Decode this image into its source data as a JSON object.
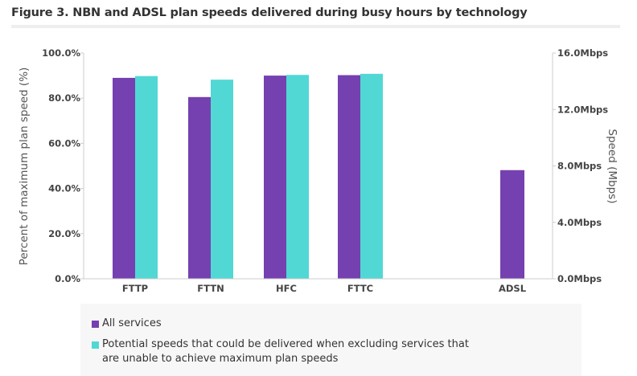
{
  "title": "Figure 3. NBN and ADSL plan speeds delivered during busy hours by technology",
  "colors": {
    "all_services": "#7540b0",
    "potential": "#51d8d5"
  },
  "legend": {
    "all_services": "All services",
    "potential": "Potential speeds that could be delivered when excluding services that are unable to achieve maximum plan speeds",
    "potential_line1": "Potential speeds that could be delivered when excluding services that",
    "potential_line2": "are unable to achieve maximum plan speeds"
  },
  "chart_data": {
    "type": "bar",
    "categories": [
      "FTTP",
      "FTTN",
      "HFC",
      "FTTC",
      "ADSL"
    ],
    "series": [
      {
        "name": "All services",
        "axis": "left",
        "values": [
          89.0,
          80.5,
          90.0,
          90.2,
          null
        ]
      },
      {
        "name": "Potential speeds that could be delivered when excluding services that are unable to achieve maximum plan speeds",
        "axis": "left",
        "values": [
          89.8,
          88.2,
          90.3,
          90.8,
          null
        ]
      },
      {
        "name": "All services",
        "axis": "right",
        "values": [
          null,
          null,
          null,
          null,
          7.7
        ]
      }
    ],
    "ylabel": "Percent of maximum plan speed (%)",
    "y2label": "Speed (Mbps)",
    "ylim": [
      0,
      100
    ],
    "y2lim": [
      0,
      16
    ],
    "yticks": [
      "0.0%",
      "20.0%",
      "40.0%",
      "60.0%",
      "80.0%",
      "100.0%"
    ],
    "y2ticks": [
      "0.0Mbps",
      "4.0Mbps",
      "8.0Mbps",
      "12.0Mbps",
      "16.0Mbps"
    ],
    "grid": false,
    "legend_position": "bottom"
  }
}
